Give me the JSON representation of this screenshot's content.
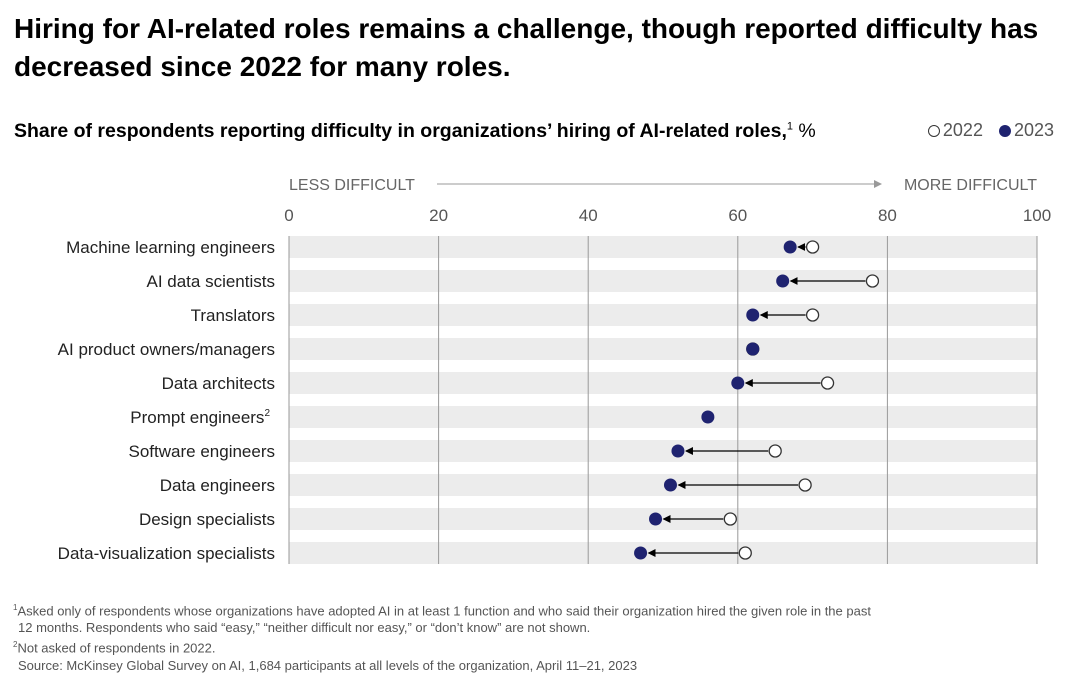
{
  "title": "Hiring for AI-related roles remains a challenge, though reported difficulty has decreased since 2022 for many roles.",
  "subtitle": {
    "text": "Share of respondents reporting difficulty in organizations’ hiring of AI-related roles,",
    "footnote_ref": "1",
    "unit": "%"
  },
  "legend": {
    "series_2022": "2022",
    "series_2023": "2023"
  },
  "colors": {
    "series_2023": "#1f2370",
    "series_2022_fill": "#ffffff",
    "band": "#ececec",
    "grid": "#999999",
    "arrow": "#000000"
  },
  "chart_data": {
    "type": "dot-arrow",
    "direction_labels": {
      "left": "LESS DIFFICULT",
      "right": "MORE DIFFICULT"
    },
    "xlim": [
      0,
      100
    ],
    "x_ticks": [
      0,
      20,
      40,
      60,
      80,
      100
    ],
    "categories": [
      "Machine learning engineers",
      "AI data scientists",
      "Translators",
      "AI product owners/managers",
      "Data architects",
      "Prompt engineers",
      "Software engineers",
      "Data engineers",
      "Design specialists",
      "Data-visualization specialists"
    ],
    "category_footnotes": [
      "",
      "",
      "",
      "",
      "",
      "2",
      "",
      "",
      "",
      ""
    ],
    "series": [
      {
        "name": "2022",
        "values": [
          70,
          78,
          70,
          62,
          72,
          null,
          65,
          69,
          59,
          61
        ]
      },
      {
        "name": "2023",
        "values": [
          67,
          66,
          62,
          62,
          60,
          56,
          52,
          51,
          49,
          47
        ]
      }
    ]
  },
  "footnotes": [
    {
      "mark": "1",
      "text": "Asked only of respondents whose organizations have adopted AI in at least 1 function and who said their organization hired the given role in the past"
    },
    {
      "mark": "",
      "text": "12 months. Respondents who said “easy,” “neither difficult nor easy,” or “don’t know” are not shown."
    },
    {
      "mark": "2",
      "text": "Not asked of respondents in 2022."
    },
    {
      "mark": "",
      "text": "Source: McKinsey Global Survey on AI, 1,684 participants at all levels of the organization, April 11–21, 2023"
    }
  ]
}
